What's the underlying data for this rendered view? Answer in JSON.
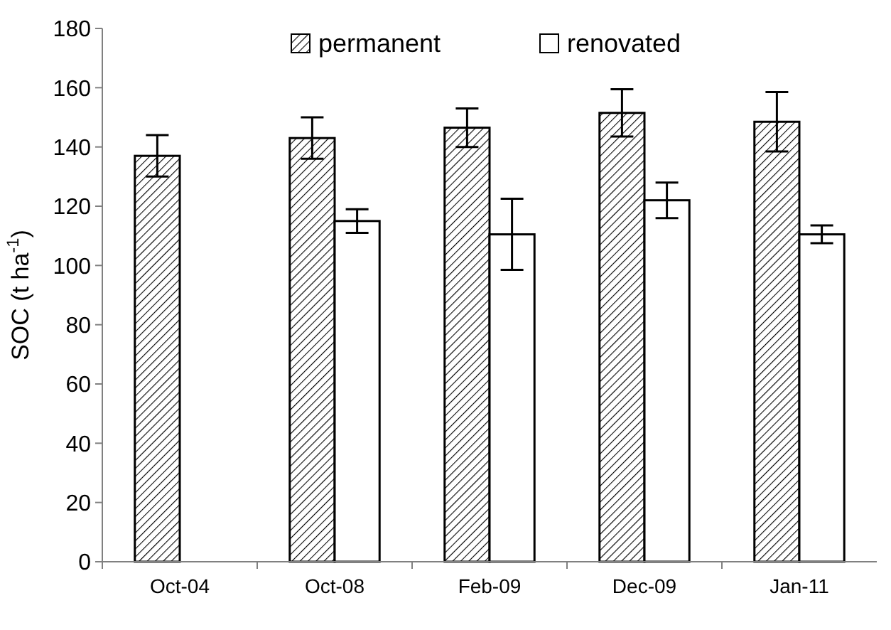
{
  "chart_data": {
    "type": "bar",
    "ylabel": "SOC (t ha$^{-1}$)",
    "categories": [
      "Oct-04",
      "Oct-08",
      "Feb-09",
      "Dec-09",
      "Jan-11"
    ],
    "series": [
      {
        "name": "permanent",
        "color": "#000000",
        "values": [
          137,
          143,
          146.5,
          151.5,
          148.5
        ],
        "errors": [
          7,
          7,
          6.5,
          8,
          10
        ]
      },
      {
        "name": "renovated",
        "color": "#ffffff",
        "values": [
          null,
          115,
          110.5,
          122,
          110.5
        ],
        "errors": [
          null,
          4,
          12,
          6,
          3
        ]
      }
    ],
    "ylim": [
      0,
      180
    ],
    "yticks": [
      0,
      20,
      40,
      60,
      80,
      100,
      120,
      140,
      160,
      180
    ],
    "grid": false,
    "legend": "top"
  }
}
